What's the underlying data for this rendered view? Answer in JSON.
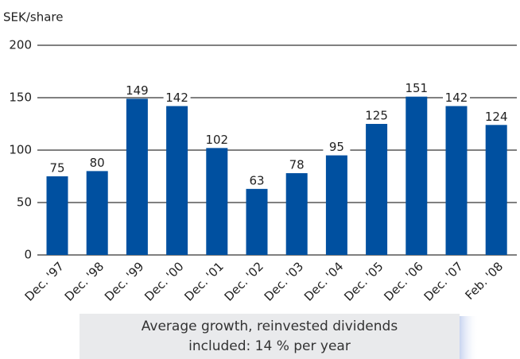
{
  "chart_data": {
    "type": "bar",
    "y_label": "SEK/share",
    "categories": [
      "Dec. '97",
      "Dec. '98",
      "Dec. '99",
      "Dec. '00",
      "Dec. '01",
      "Dec. '02",
      "Dec. '03",
      "Dec. '04",
      "Dec. '05",
      "Dec. '06",
      "Dec. '07",
      "Feb. '08"
    ],
    "values": [
      75,
      80,
      149,
      142,
      102,
      63,
      78,
      95,
      125,
      151,
      142,
      124
    ],
    "color": "#0050a0",
    "ylim": [
      0,
      200
    ],
    "yticks": [
      0,
      50,
      100,
      150,
      200
    ],
    "grid": true,
    "annotation": [
      "Average growth, reinvested dividends",
      "included: 14 % per year"
    ]
  }
}
